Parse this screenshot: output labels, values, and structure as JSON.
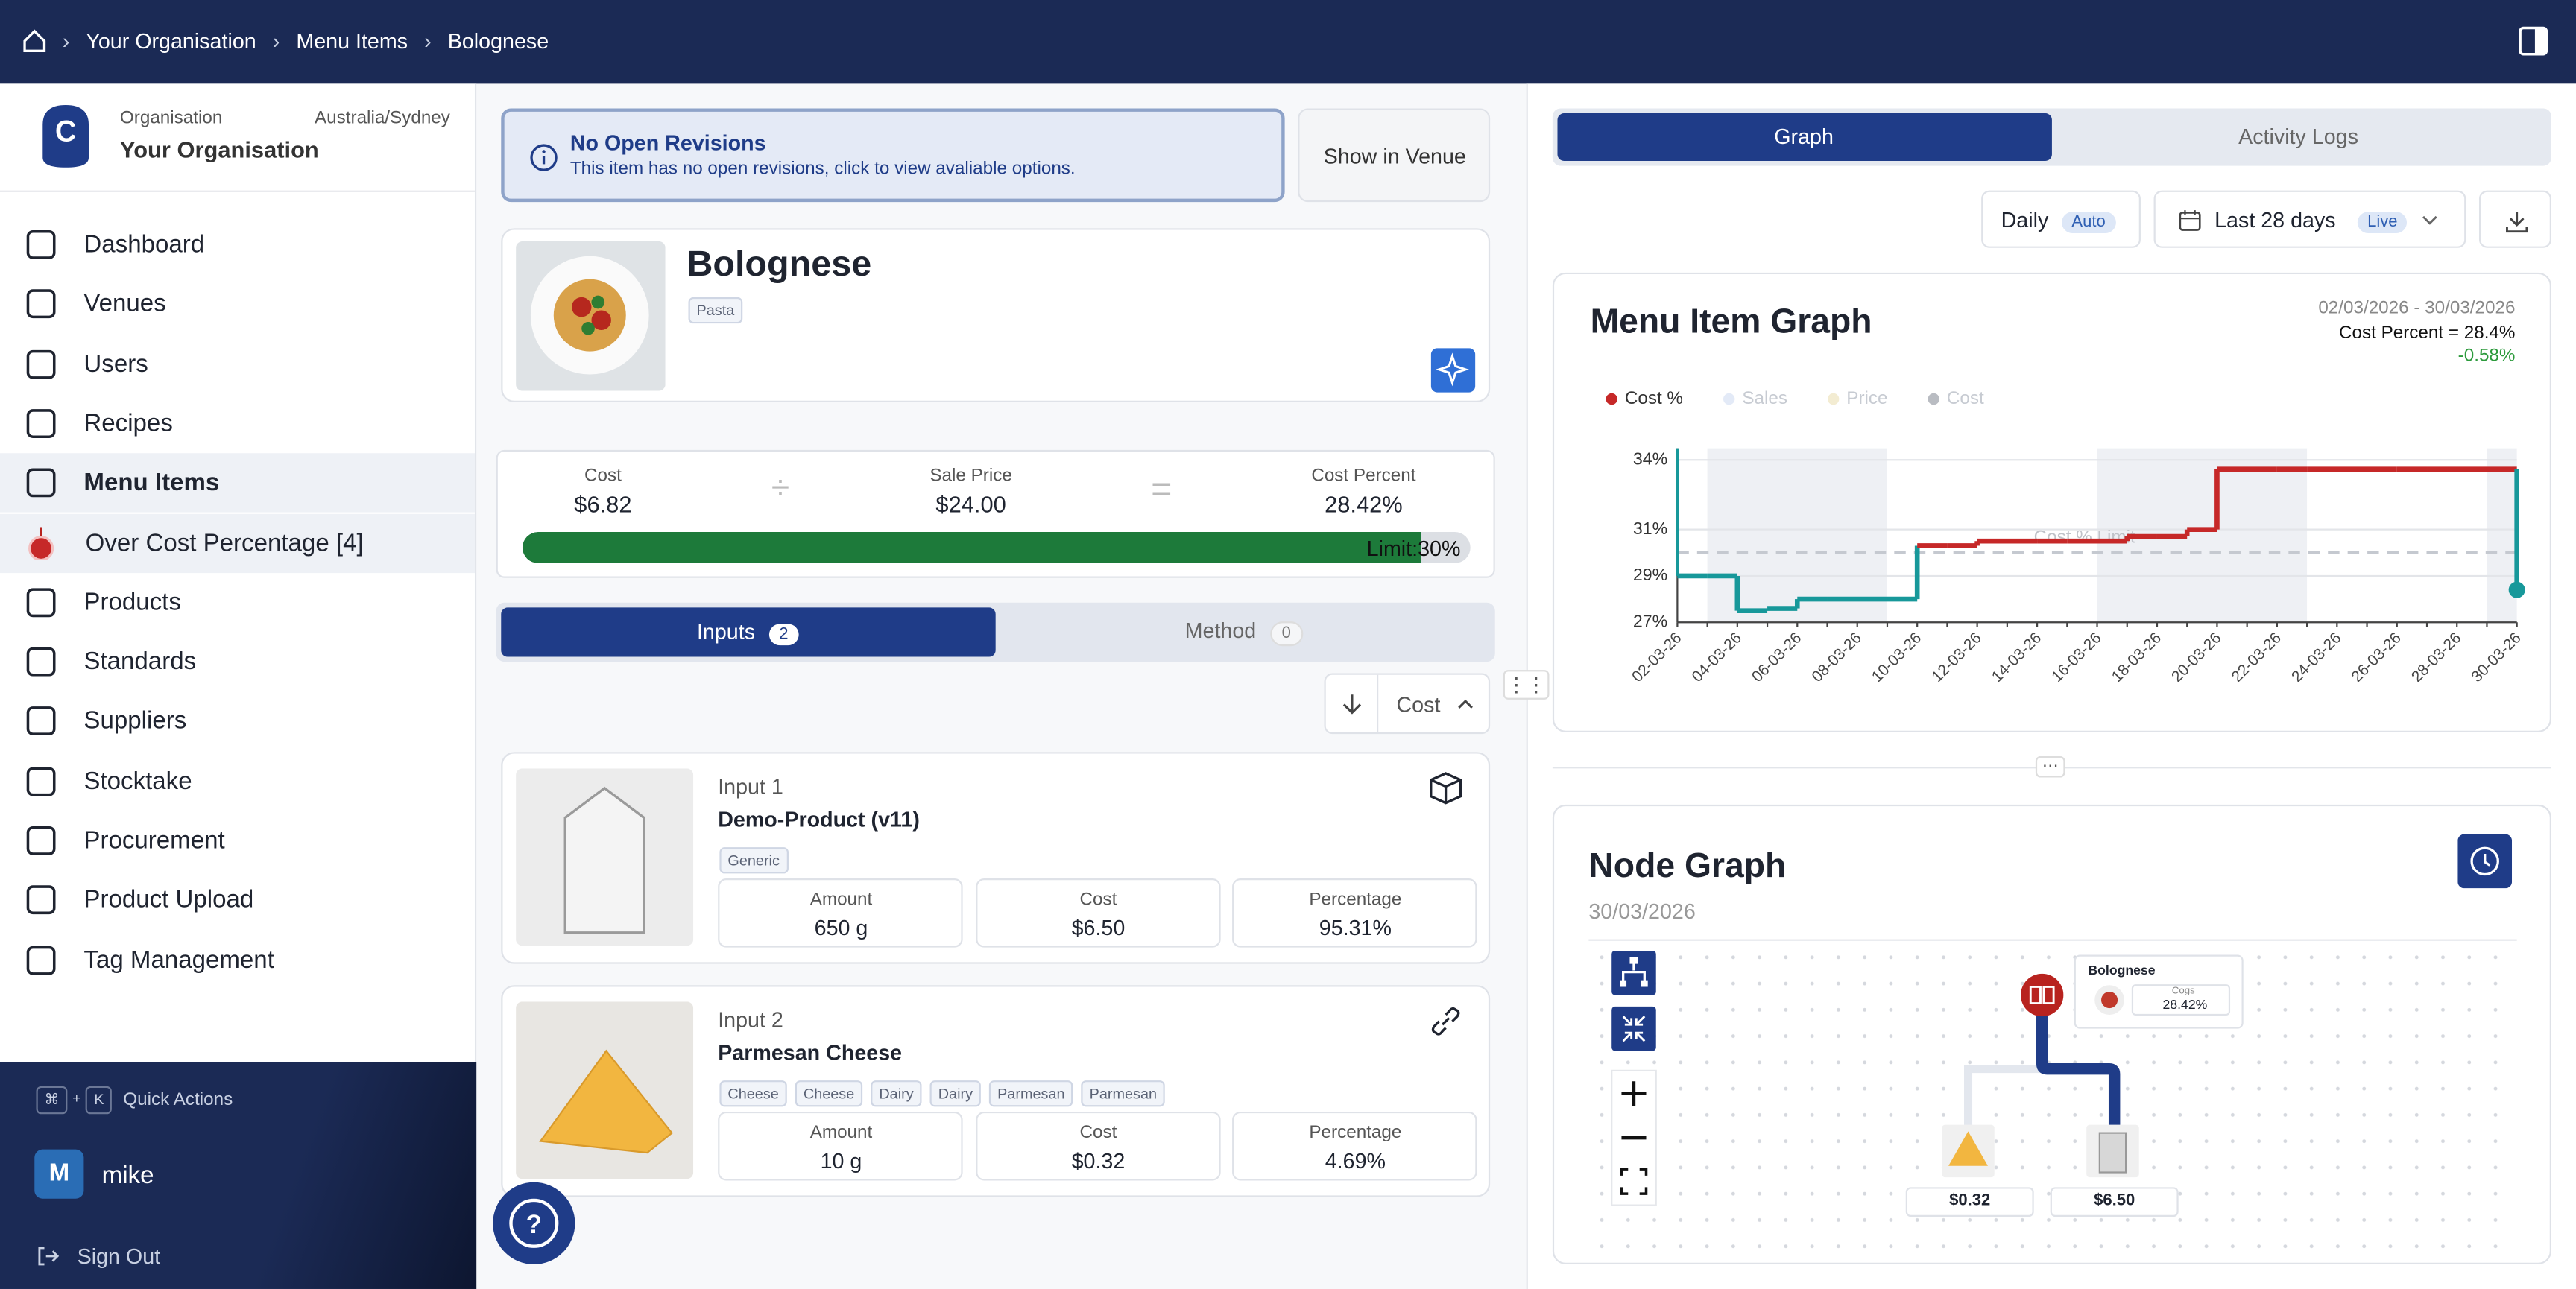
{
  "breadcrumb": [
    "Your Organisation",
    "Menu Items",
    "Bolognese"
  ],
  "sidebar": {
    "org_label": "Organisation",
    "timezone": "Australia/Sydney",
    "org_name": "Your Organisation",
    "nav": [
      "Dashboard",
      "Venues",
      "Users",
      "Recipes",
      "Menu Items",
      "Over Cost Percentage [4]",
      "Products",
      "Standards",
      "Suppliers",
      "Stocktake",
      "Procurement",
      "Product Upload",
      "Tag Management"
    ],
    "quick_keys": [
      "⌘",
      "+",
      "K"
    ],
    "quick_actions": "Quick Actions",
    "user_initial": "M",
    "user": "mike",
    "sign_out": "Sign Out"
  },
  "revision_banner": {
    "title": "No Open Revisions",
    "text": "This item has no open revisions, click to view avaliable options."
  },
  "show_in_venue": "Show in Venue",
  "item": {
    "name": "Bolognese",
    "tag": "Pasta"
  },
  "cost_summary": {
    "cost_label": "Cost",
    "cost": "$6.82",
    "sale_label": "Sale Price",
    "sale": "$24.00",
    "percent_label": "Cost Percent",
    "percent": "28.42%",
    "limit": "Limit:30%"
  },
  "tabs": [
    {
      "label": "Inputs",
      "count": "2"
    },
    {
      "label": "Method",
      "count": "0"
    }
  ],
  "sort": "Cost",
  "inputs": [
    {
      "label": "Input 1",
      "name": "Demo-Product (v11)",
      "tags": [
        "Generic"
      ],
      "amount_label": "Amount",
      "amount": "650 g",
      "cost_label": "Cost",
      "cost": "$6.50",
      "percent_label": "Percentage",
      "percent": "95.31%"
    },
    {
      "label": "Input 2",
      "name": "Parmesan Cheese",
      "tags": [
        "Cheese",
        "Cheese",
        "Dairy",
        "Dairy",
        "Parmesan",
        "Parmesan"
      ],
      "amount_label": "Amount",
      "amount": "10 g",
      "cost_label": "Cost",
      "cost": "$0.32",
      "percent_label": "Percentage",
      "percent": "4.69%"
    }
  ],
  "right_tabs": [
    "Graph",
    "Activity Logs"
  ],
  "controls": {
    "interval": "Daily",
    "interval_badge": "Auto",
    "range": "Last 28 days",
    "range_badge": "Live"
  },
  "chart_data": {
    "type": "step",
    "title": "Menu Item Graph",
    "date_range": "02/03/2026 - 30/03/2026",
    "summary": "Cost Percent = 28.4%",
    "change": "-0.58%",
    "categories": [
      "02-03-26",
      null,
      "04-03-26",
      null,
      "06-03-26",
      null,
      "08-03-26",
      null,
      "10-03-26",
      null,
      "12-03-26",
      null,
      "14-03-26",
      null,
      "16-03-26",
      null,
      "18-03-26",
      null,
      "20-03-26",
      null,
      "22-03-26",
      null,
      "24-03-26",
      null,
      "26-03-26",
      null,
      "28-03-26",
      null,
      "30-03-26"
    ],
    "series": [
      {
        "name": "Cost %",
        "color": "#c62828",
        "below_color": "#17989a",
        "values": [
          29.0,
          29.0,
          27.5,
          27.6,
          28.0,
          28.0,
          28.0,
          28.0,
          30.3,
          30.3,
          30.5,
          30.5,
          30.5,
          30.5,
          30.5,
          30.7,
          30.7,
          31.0,
          33.6,
          33.6,
          33.6,
          33.6,
          33.6,
          33.6,
          33.6,
          33.6,
          33.6,
          33.6,
          28.4
        ]
      }
    ],
    "legend_inactive": [
      {
        "name": "Sales",
        "color": "#e3eaf7"
      },
      {
        "name": "Price",
        "color": "#f3ecd2"
      },
      {
        "name": "Cost",
        "color": "#b9bcc2"
      }
    ],
    "limit": {
      "value": 30,
      "label": "Cost % Limit"
    },
    "ylim": [
      27,
      34.5
    ],
    "yticks": [
      {
        "value": 27,
        "label": "27%"
      },
      {
        "value": 29,
        "label": "29%"
      },
      {
        "value": 31,
        "label": "31%"
      },
      {
        "value": 34,
        "label": "34%"
      }
    ],
    "grid": true
  },
  "node_graph": {
    "title": "Node Graph",
    "date": "30/03/2026",
    "root": "Bolognese",
    "metric_label": "Cogs",
    "metric": "28.42%",
    "leaves": [
      "$0.32",
      "$6.50"
    ]
  }
}
